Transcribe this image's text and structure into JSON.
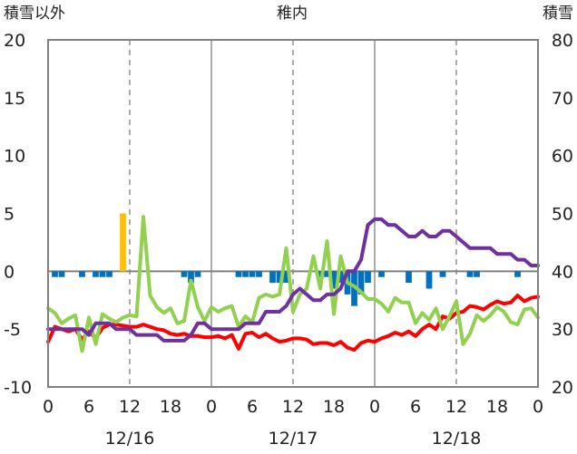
{
  "chart_data": {
    "type": "line+bar",
    "title": "稚内",
    "left_axis_title": "積雪以外",
    "right_axis_title": "積雪",
    "left_axis": {
      "range": [
        -10,
        20
      ],
      "ticks": [
        "-10",
        "-5",
        "0",
        "5",
        "10",
        "15",
        "20"
      ]
    },
    "right_axis": {
      "range": [
        20,
        80
      ],
      "ticks": [
        "20",
        "30",
        "40",
        "50",
        "60",
        "70",
        "80"
      ]
    },
    "x_axis": {
      "range": [
        0,
        72
      ],
      "hour_ticks": [
        {
          "x": 0,
          "label": "0"
        },
        {
          "x": 6,
          "label": "6"
        },
        {
          "x": 12,
          "label": "12"
        },
        {
          "x": 18,
          "label": "18"
        },
        {
          "x": 24,
          "label": "0"
        },
        {
          "x": 30,
          "label": "6"
        },
        {
          "x": 36,
          "label": "12"
        },
        {
          "x": 42,
          "label": "18"
        },
        {
          "x": 48,
          "label": "0"
        },
        {
          "x": 54,
          "label": "6"
        },
        {
          "x": 60,
          "label": "12"
        },
        {
          "x": 66,
          "label": "18"
        },
        {
          "x": 72,
          "label": "0"
        }
      ],
      "date_labels": [
        {
          "x": 12,
          "label": "12/16"
        },
        {
          "x": 36,
          "label": "12/17"
        },
        {
          "x": 60,
          "label": "12/18"
        }
      ],
      "dashed_at": [
        12,
        36,
        60
      ],
      "solid_at": [
        24,
        48
      ]
    },
    "series": [
      {
        "color": "#ff0000",
        "axis": "left",
        "points": [
          [
            0,
            -6.1
          ],
          [
            1,
            -4.8
          ],
          [
            2,
            -5.0
          ],
          [
            3,
            -5.2
          ],
          [
            4,
            -5.0
          ],
          [
            5,
            -5.9
          ],
          [
            6,
            -5.2
          ],
          [
            7,
            -5.8
          ],
          [
            8,
            -4.9
          ],
          [
            9,
            -4.6
          ],
          [
            10,
            -4.6
          ],
          [
            11,
            -4.7
          ],
          [
            12,
            -4.8
          ],
          [
            13,
            -4.8
          ],
          [
            14,
            -4.6
          ],
          [
            15,
            -4.8
          ],
          [
            16,
            -5.0
          ],
          [
            17,
            -5.1
          ],
          [
            18,
            -5.4
          ],
          [
            19,
            -5.5
          ],
          [
            20,
            -5.4
          ],
          [
            21,
            -5.6
          ],
          [
            22,
            -5.6
          ],
          [
            23,
            -5.7
          ],
          [
            24,
            -5.7
          ],
          [
            25,
            -5.6
          ],
          [
            26,
            -5.8
          ],
          [
            27,
            -5.5
          ],
          [
            28,
            -6.7
          ],
          [
            29,
            -5.4
          ],
          [
            30,
            -5.3
          ],
          [
            31,
            -5.7
          ],
          [
            32,
            -5.4
          ],
          [
            33,
            -5.8
          ],
          [
            34,
            -6.1
          ],
          [
            35,
            -6.0
          ],
          [
            36,
            -5.8
          ],
          [
            37,
            -5.8
          ],
          [
            38,
            -5.9
          ],
          [
            39,
            -6.3
          ],
          [
            40,
            -6.2
          ],
          [
            41,
            -6.2
          ],
          [
            42,
            -6.4
          ],
          [
            43,
            -6.1
          ],
          [
            44,
            -6.6
          ],
          [
            45,
            -6.8
          ],
          [
            46,
            -6.2
          ],
          [
            47,
            -6.0
          ],
          [
            48,
            -6.1
          ],
          [
            49,
            -5.8
          ],
          [
            50,
            -5.6
          ],
          [
            51,
            -5.3
          ],
          [
            52,
            -5.5
          ],
          [
            53,
            -5.2
          ],
          [
            54,
            -5.6
          ],
          [
            55,
            -5.0
          ],
          [
            56,
            -4.6
          ],
          [
            57,
            -5.0
          ],
          [
            58,
            -3.9
          ],
          [
            59,
            -4.1
          ],
          [
            60,
            -3.6
          ],
          [
            61,
            -3.5
          ],
          [
            62,
            -3.0
          ],
          [
            63,
            -3.1
          ],
          [
            64,
            -3.3
          ],
          [
            65,
            -2.9
          ],
          [
            66,
            -2.6
          ],
          [
            67,
            -2.8
          ],
          [
            68,
            -2.7
          ],
          [
            69,
            -2.1
          ],
          [
            70,
            -2.6
          ],
          [
            71,
            -2.3
          ],
          [
            72,
            -2.2
          ]
        ]
      },
      {
        "color": "#92d050",
        "axis": "left",
        "points": [
          [
            0,
            -3.2
          ],
          [
            1,
            -3.6
          ],
          [
            2,
            -4.5
          ],
          [
            3,
            -4.1
          ],
          [
            4,
            -3.8
          ],
          [
            5,
            -6.9
          ],
          [
            6,
            -4.0
          ],
          [
            7,
            -6.3
          ],
          [
            8,
            -3.7
          ],
          [
            9,
            -4.1
          ],
          [
            10,
            -4.4
          ],
          [
            11,
            -4.0
          ],
          [
            12,
            -3.8
          ],
          [
            13,
            -3.9
          ],
          [
            14,
            4.7
          ],
          [
            15,
            -2.1
          ],
          [
            16,
            -3.1
          ],
          [
            17,
            -3.6
          ],
          [
            18,
            -3.2
          ],
          [
            19,
            -4.5
          ],
          [
            20,
            -4.3
          ],
          [
            21,
            -0.8
          ],
          [
            22,
            -3.1
          ],
          [
            23,
            -4.3
          ],
          [
            24,
            -3.1
          ],
          [
            25,
            -3.5
          ],
          [
            26,
            -3.2
          ],
          [
            27,
            -3.0
          ],
          [
            28,
            -4.8
          ],
          [
            29,
            -3.9
          ],
          [
            30,
            -4.4
          ],
          [
            31,
            -2.3
          ],
          [
            32,
            -2.0
          ],
          [
            33,
            -2.2
          ],
          [
            34,
            -2.0
          ],
          [
            35,
            2.0
          ],
          [
            36,
            -3.5
          ],
          [
            37,
            -2.0
          ],
          [
            38,
            -1.5
          ],
          [
            39,
            1.3
          ],
          [
            40,
            -1.5
          ],
          [
            41,
            2.6
          ],
          [
            42,
            -3.7
          ],
          [
            43,
            1.3
          ],
          [
            44,
            -1.0
          ],
          [
            45,
            -1.3
          ],
          [
            46,
            -1.8
          ],
          [
            47,
            -2.4
          ],
          [
            48,
            -2.4
          ],
          [
            49,
            -2.8
          ],
          [
            50,
            -3.5
          ],
          [
            51,
            -2.3
          ],
          [
            52,
            -2.7
          ],
          [
            53,
            -2.7
          ],
          [
            54,
            -4.5
          ],
          [
            55,
            -3.6
          ],
          [
            56,
            -4.2
          ],
          [
            57,
            -3.2
          ],
          [
            58,
            -5.0
          ],
          [
            59,
            -3.9
          ],
          [
            60,
            -2.6
          ],
          [
            61,
            -6.3
          ],
          [
            62,
            -5.4
          ],
          [
            63,
            -3.8
          ],
          [
            64,
            -4.3
          ],
          [
            65,
            -3.8
          ],
          [
            66,
            -3.1
          ],
          [
            67,
            -3.5
          ],
          [
            68,
            -4.4
          ],
          [
            69,
            -4.6
          ],
          [
            70,
            -3.3
          ],
          [
            71,
            -3.2
          ],
          [
            72,
            -4.0
          ]
        ]
      },
      {
        "color": "#7030a0",
        "axis": "right",
        "points": [
          [
            0,
            30
          ],
          [
            1,
            30
          ],
          [
            2,
            30
          ],
          [
            3,
            30
          ],
          [
            4,
            30
          ],
          [
            5,
            30
          ],
          [
            6,
            29
          ],
          [
            7,
            31
          ],
          [
            8,
            31
          ],
          [
            9,
            31
          ],
          [
            10,
            30
          ],
          [
            11,
            30
          ],
          [
            12,
            30
          ],
          [
            13,
            29
          ],
          [
            14,
            29
          ],
          [
            15,
            29
          ],
          [
            16,
            29
          ],
          [
            17,
            28
          ],
          [
            18,
            28
          ],
          [
            19,
            28
          ],
          [
            20,
            28
          ],
          [
            21,
            29
          ],
          [
            22,
            31
          ],
          [
            23,
            31
          ],
          [
            24,
            30
          ],
          [
            25,
            30
          ],
          [
            26,
            30
          ],
          [
            27,
            30
          ],
          [
            28,
            30
          ],
          [
            29,
            31
          ],
          [
            30,
            31
          ],
          [
            31,
            31
          ],
          [
            32,
            33
          ],
          [
            33,
            33
          ],
          [
            34,
            33
          ],
          [
            35,
            34
          ],
          [
            36,
            36
          ],
          [
            37,
            37
          ],
          [
            38,
            36
          ],
          [
            39,
            35
          ],
          [
            40,
            35
          ],
          [
            41,
            36
          ],
          [
            42,
            36
          ],
          [
            43,
            37
          ],
          [
            44,
            40
          ],
          [
            45,
            40
          ],
          [
            46,
            42
          ],
          [
            47,
            48
          ],
          [
            48,
            49
          ],
          [
            49,
            49
          ],
          [
            50,
            48
          ],
          [
            51,
            48
          ],
          [
            52,
            47
          ],
          [
            53,
            46
          ],
          [
            54,
            46
          ],
          [
            55,
            47
          ],
          [
            56,
            46
          ],
          [
            57,
            46
          ],
          [
            58,
            47
          ],
          [
            59,
            47
          ],
          [
            60,
            46
          ],
          [
            61,
            45
          ],
          [
            62,
            44
          ],
          [
            63,
            44
          ],
          [
            64,
            44
          ],
          [
            65,
            44
          ],
          [
            66,
            43
          ],
          [
            67,
            43
          ],
          [
            68,
            43
          ],
          [
            69,
            42
          ],
          [
            70,
            42
          ],
          [
            71,
            41
          ],
          [
            72,
            41
          ]
        ]
      }
    ],
    "bars": [
      {
        "color": "#ffc000",
        "values": [
          [
            11,
            5.0
          ]
        ]
      },
      {
        "color": "#0070c0",
        "values": [
          [
            1,
            -0.5
          ],
          [
            2,
            -0.5
          ],
          [
            5,
            -0.5
          ],
          [
            7,
            -0.5
          ],
          [
            8,
            -0.5
          ],
          [
            9,
            -0.5
          ],
          [
            20,
            -0.5
          ],
          [
            21,
            -1.0
          ],
          [
            22,
            -0.5
          ],
          [
            28,
            -0.5
          ],
          [
            29,
            -0.5
          ],
          [
            30,
            -0.5
          ],
          [
            31,
            -0.5
          ],
          [
            33,
            -1.0
          ],
          [
            34,
            -1.0
          ],
          [
            35,
            -1.0
          ],
          [
            40,
            -0.5
          ],
          [
            41,
            -0.5
          ],
          [
            42,
            -1.5
          ],
          [
            43,
            -1.0
          ],
          [
            44,
            -2.0
          ],
          [
            45,
            -3.0
          ],
          [
            46,
            -2.0
          ],
          [
            47,
            -1.0
          ],
          [
            49,
            -0.5
          ],
          [
            53,
            -1.0
          ],
          [
            56,
            -1.5
          ],
          [
            58,
            -0.5
          ],
          [
            62,
            -0.5
          ],
          [
            63,
            -0.5
          ],
          [
            69,
            -0.5
          ]
        ]
      }
    ]
  }
}
